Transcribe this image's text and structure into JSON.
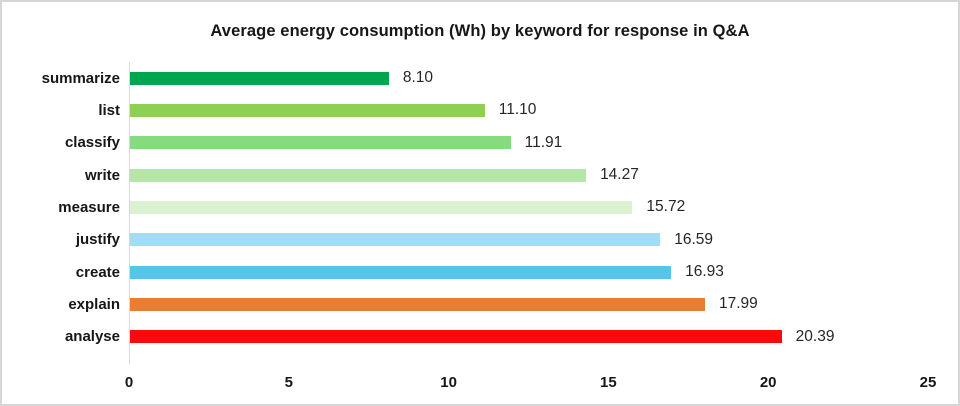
{
  "chart_data": {
    "type": "bar",
    "orientation": "horizontal",
    "title": "Average energy consumption (Wh) by keyword for response in Q&A",
    "categories": [
      "summarize",
      "list",
      "classify",
      "write",
      "measure",
      "justify",
      "create",
      "explain",
      "analyse"
    ],
    "values": [
      8.1,
      11.1,
      11.91,
      14.27,
      15.72,
      16.59,
      16.93,
      17.99,
      20.39
    ],
    "value_labels": [
      "8.10",
      "11.10",
      "11.91",
      "14.27",
      "15.72",
      "16.59",
      "16.93",
      "17.99",
      "20.39"
    ],
    "bar_colors": [
      "#00A550",
      "#8DD054",
      "#86DB7E",
      "#B5E6A7",
      "#DAF2D0",
      "#A2DCF6",
      "#56C5EE",
      "#E97D32",
      "#F90B0B"
    ],
    "xlabel": "",
    "ylabel": "",
    "xlim": [
      0,
      25
    ],
    "x_ticks": [
      "0",
      "5",
      "10",
      "15",
      "20",
      "25"
    ],
    "grid": false,
    "legend": false
  },
  "colors": {
    "background": "#ffffff",
    "frame_border": "#d6d6d6",
    "axis_line": "#d9d9d9",
    "title_text": "#171717",
    "category_text": "#171717",
    "value_text": "#262626",
    "tick_text": "#171717"
  }
}
